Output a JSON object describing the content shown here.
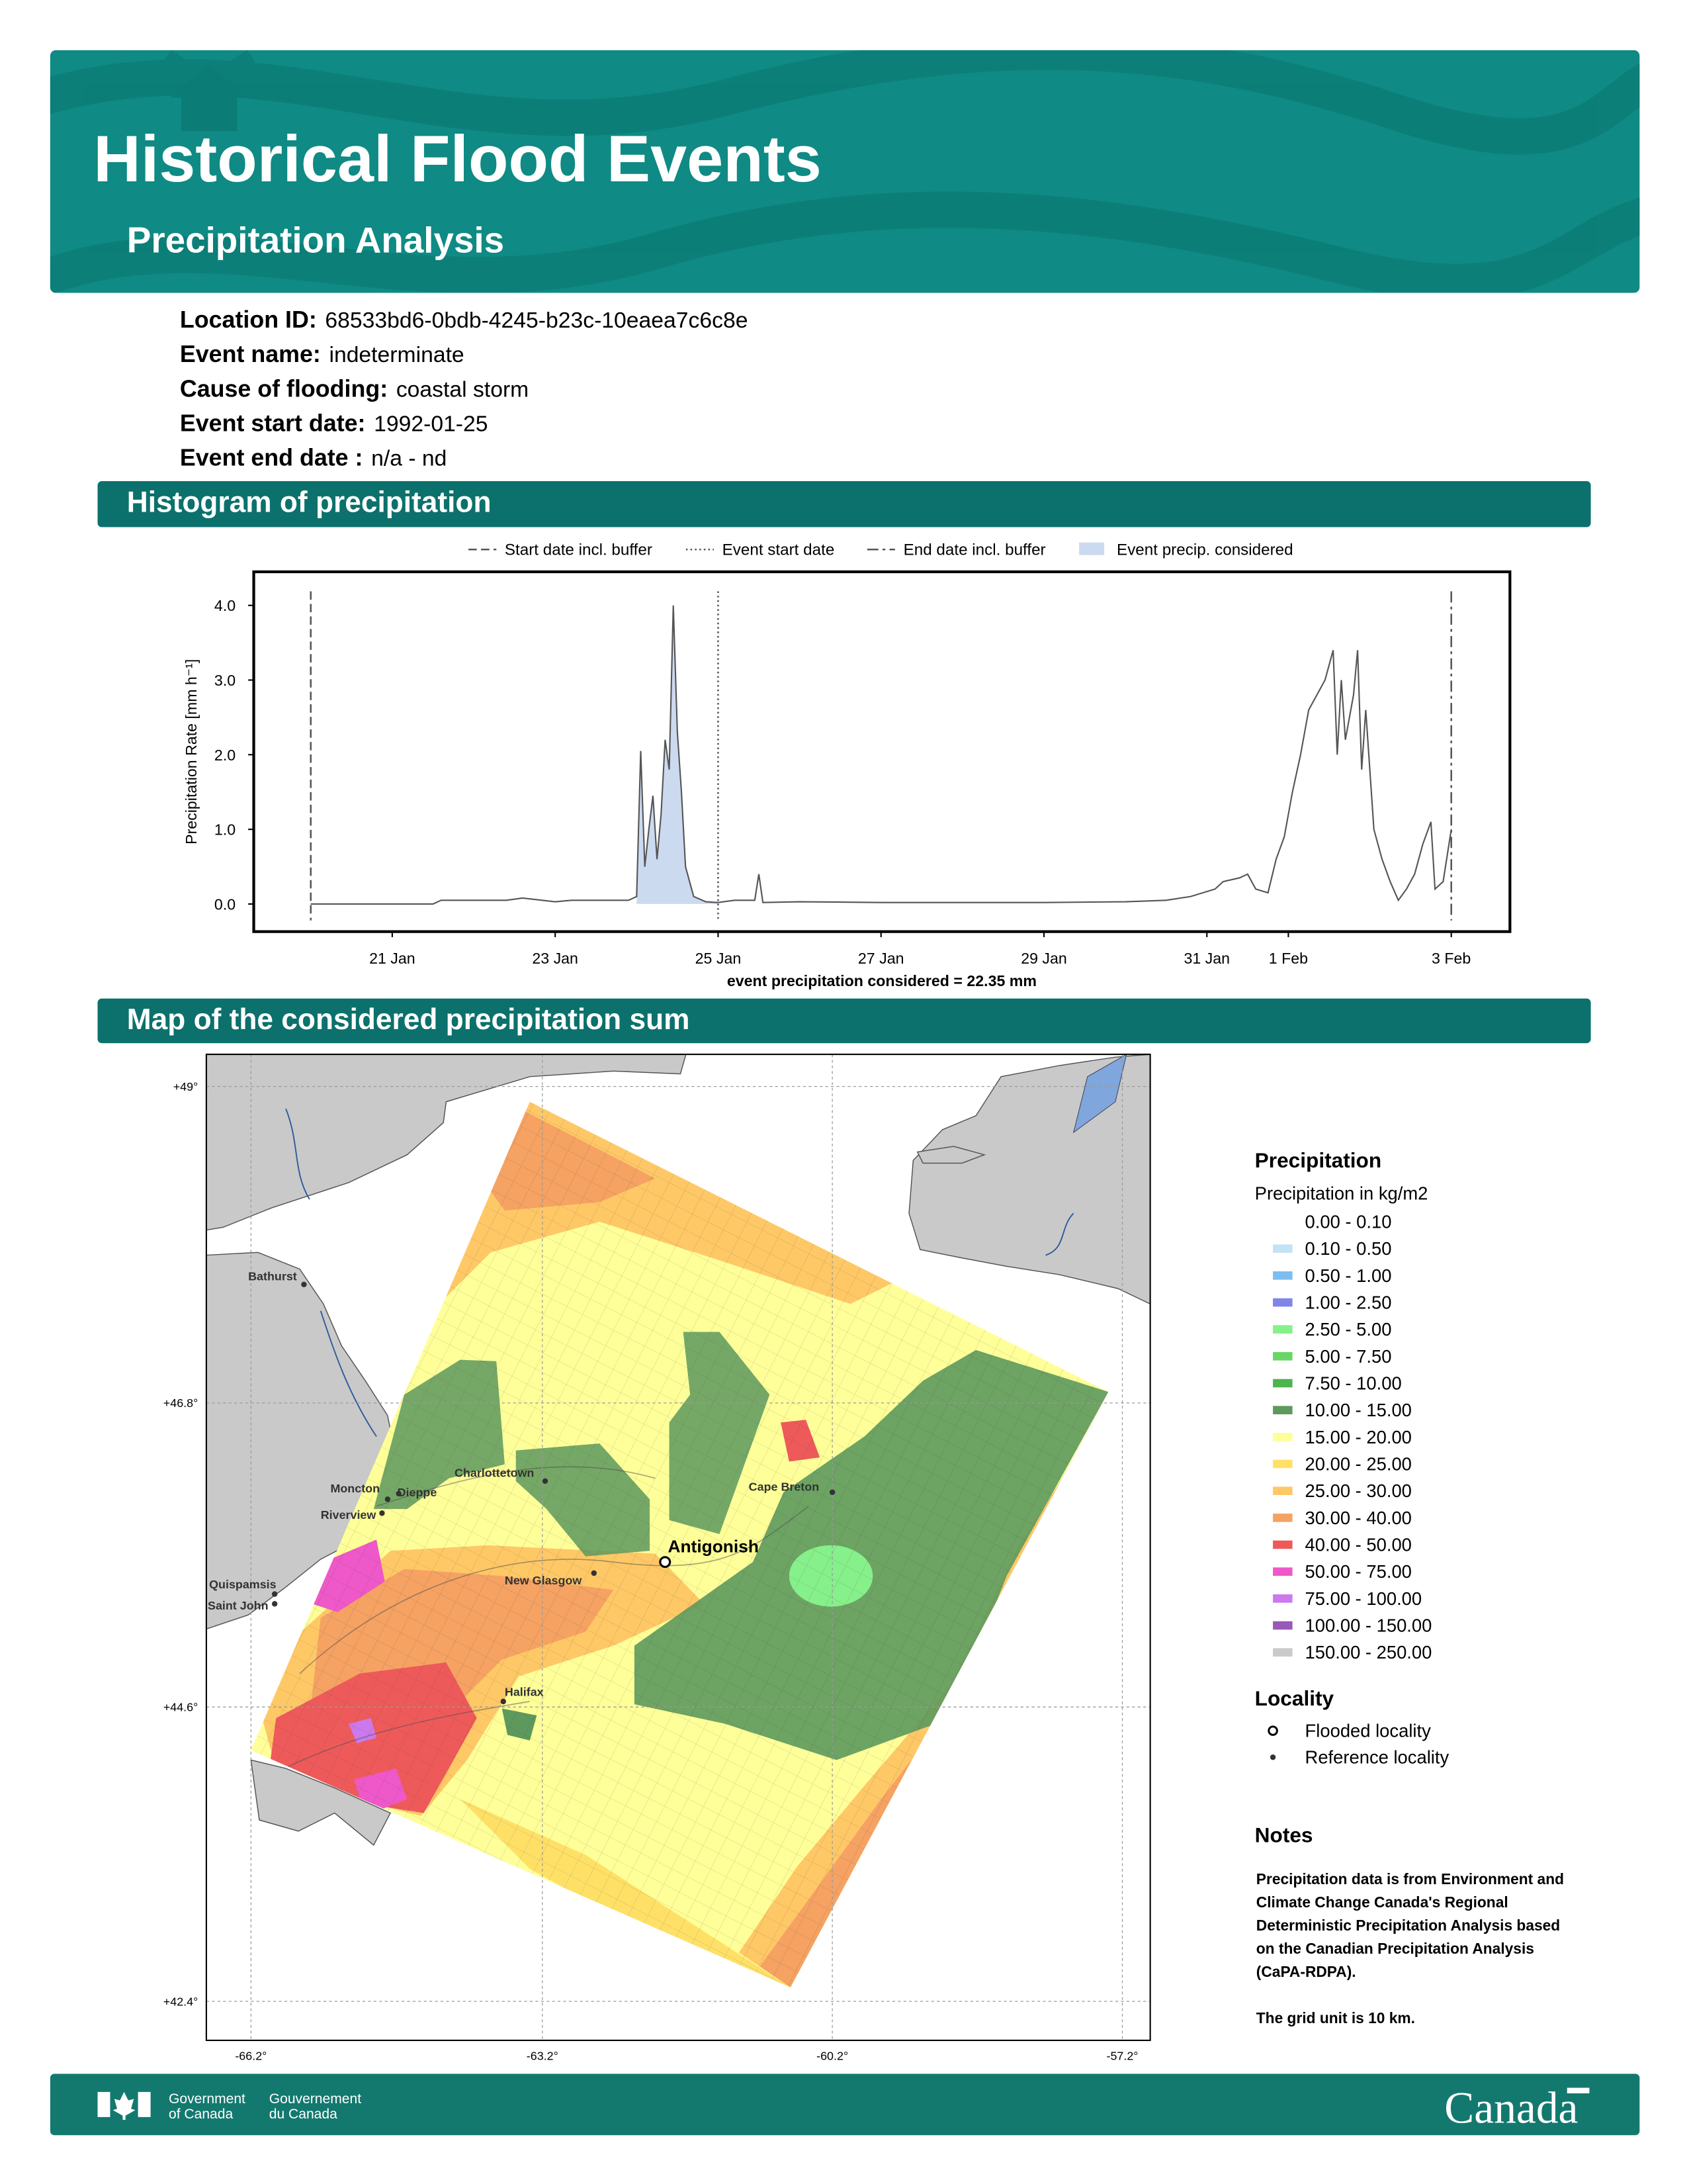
{
  "header": {
    "title": "Historical Flood Events",
    "subtitle": "Precipitation Analysis"
  },
  "info": [
    {
      "label": "Location ID:",
      "value": "68533bd6-0bdb-4245-b23c-10eaea7c6c8e"
    },
    {
      "label": "Event name:",
      "value": "indeterminate"
    },
    {
      "label": "Cause of flooding:",
      "value": "coastal storm"
    },
    {
      "label": "Event start date:",
      "value": "1992-01-25"
    },
    {
      "label": "Event end date :",
      "value": "n/a - nd"
    }
  ],
  "sections": {
    "histogram": "Histogram of precipitation",
    "map": "Map of the considered precipitation sum"
  },
  "chart_data": {
    "type": "line",
    "ylabel": "Precipitation Rate [mm h⁻¹]",
    "annotation": "event precipitation considered = 22.35 mm",
    "xlim": [
      19.3,
      34.72
    ],
    "ylim": [
      -0.37,
      4.45
    ],
    "xticks": [
      {
        "value": 21,
        "label": "21 Jan"
      },
      {
        "value": 23,
        "label": "23 Jan"
      },
      {
        "value": 25,
        "label": "25 Jan"
      },
      {
        "value": 27,
        "label": "27 Jan"
      },
      {
        "value": 29,
        "label": "29 Jan"
      },
      {
        "value": 31,
        "label": "31 Jan"
      },
      {
        "value": 32,
        "label": "1 Feb"
      },
      {
        "value": 34,
        "label": "3 Feb"
      }
    ],
    "yticks": [
      {
        "value": 0,
        "label": "0.0"
      },
      {
        "value": 1,
        "label": "1.0"
      },
      {
        "value": 2,
        "label": "2.0"
      },
      {
        "value": 3,
        "label": "3.0"
      },
      {
        "value": 4,
        "label": "4.0"
      }
    ],
    "color": "#555555",
    "x": [
      20,
      21.5,
      21.6,
      22.4,
      22.6,
      23.0,
      23.2,
      23.9,
      24.0,
      24.05,
      24.1,
      24.15,
      24.2,
      24.25,
      24.3,
      24.35,
      24.4,
      24.45,
      24.5,
      24.55,
      24.6,
      24.7,
      24.85,
      25.0,
      25.2,
      25.45,
      25.5,
      25.55,
      26.0,
      27.0,
      28.0,
      29.0,
      30.0,
      30.5,
      30.8,
      31.1,
      31.2,
      31.4,
      31.5,
      31.6,
      31.75,
      31.85,
      31.95,
      32.05,
      32.15,
      32.25,
      32.35,
      32.45,
      32.55,
      32.6,
      32.65,
      32.7,
      32.8,
      32.85,
      32.9,
      32.95,
      33.05,
      33.15,
      33.25,
      33.35,
      33.45,
      33.55,
      33.65,
      33.75,
      33.8,
      33.9,
      34.0
    ],
    "values": [
      0,
      0,
      0.05,
      0.05,
      0.08,
      0.03,
      0.05,
      0.05,
      0.1,
      2.05,
      0.5,
      1.0,
      1.45,
      0.6,
      1.2,
      2.2,
      1.8,
      4.0,
      2.3,
      1.5,
      0.5,
      0.1,
      0.03,
      0.02,
      0.05,
      0.05,
      0.4,
      0.02,
      0.03,
      0.02,
      0.02,
      0.02,
      0.03,
      0.05,
      0.1,
      0.2,
      0.3,
      0.35,
      0.4,
      0.2,
      0.15,
      0.6,
      0.9,
      1.5,
      2.0,
      2.6,
      2.8,
      3.0,
      3.4,
      2.0,
      3.0,
      2.2,
      2.8,
      3.4,
      1.8,
      2.6,
      1.0,
      0.6,
      0.3,
      0.05,
      0.2,
      0.4,
      0.8,
      1.1,
      0.2,
      0.3,
      1.0
    ],
    "vlines": [
      {
        "name": "Start date incl. buffer",
        "x": 20,
        "style": "dashed"
      },
      {
        "name": "Event start date",
        "x": 25,
        "style": "dotted"
      },
      {
        "name": "End date incl. buffer",
        "x": 34,
        "style": "dashdot"
      }
    ],
    "shade": {
      "name": "Event precip. considered",
      "xrange": [
        24.0,
        25.0
      ],
      "color": "#ccdaf0"
    }
  },
  "map": {
    "lat_ticks": [
      "+49°",
      "+46.8°",
      "+44.6°",
      "+42.4°"
    ],
    "lon_ticks": [
      "-66.2°",
      "-63.2°",
      "-60.2°",
      "-57.2°"
    ],
    "localities": {
      "flooded": "Antigonish",
      "reference": [
        "Bathurst",
        "Moncton",
        "Dieppe",
        "Riverview",
        "Charlottetown",
        "Cape Breton",
        "New Glasgow",
        "Quispamsis",
        "Saint John",
        "Halifax"
      ]
    },
    "legend": {
      "title": "Precipitation",
      "subtitle": "Precipitation in kg/m2",
      "classes": [
        {
          "label": "0.00 - 0.10",
          "color": "#ffffff"
        },
        {
          "label": "0.10 - 0.50",
          "color": "#c4e2f6"
        },
        {
          "label": "0.50 - 1.00",
          "color": "#7dbdf0"
        },
        {
          "label": "1.00 - 2.50",
          "color": "#7f86e8"
        },
        {
          "label": "2.50 - 5.00",
          "color": "#86f08a"
        },
        {
          "label": "5.00 - 7.50",
          "color": "#66d766"
        },
        {
          "label": "7.50 - 10.00",
          "color": "#4eb44e"
        },
        {
          "label": "10.00 - 15.00",
          "color": "#5d995d"
        },
        {
          "label": "15.00 - 20.00",
          "color": "#ffff99"
        },
        {
          "label": "20.00 - 25.00",
          "color": "#ffe067"
        },
        {
          "label": "25.00 - 30.00",
          "color": "#ffc866"
        },
        {
          "label": "30.00 - 40.00",
          "color": "#f5a263"
        },
        {
          "label": "40.00 - 50.00",
          "color": "#ee5a5a"
        },
        {
          "label": "50.00 - 75.00",
          "color": "#ee58c8"
        },
        {
          "label": "75.00 - 100.00",
          "color": "#cb79ec"
        },
        {
          "label": "100.00 - 150.00",
          "color": "#9a58b8"
        },
        {
          "label": "150.00 - 250.00",
          "color": "#cacaca"
        }
      ],
      "locality_title": "Locality",
      "flooded_label": "Flooded locality",
      "reference_label": "Reference locality"
    },
    "notes": {
      "title": "Notes",
      "paragraphs": [
        [
          "Precipitation data is from Environment and",
          "Climate Change Canada's Regional",
          "Deterministic Precipitation Analysis based",
          "on the Canadian Precipitation Analysis",
          "(CaPA-RDPA)."
        ],
        [
          "The grid unit is 10 km."
        ]
      ]
    }
  },
  "footer": {
    "government_en": [
      "Government",
      "of Canada"
    ],
    "government_fr": [
      "Gouvernement",
      "du Canada"
    ],
    "wordmark": "Canada"
  }
}
